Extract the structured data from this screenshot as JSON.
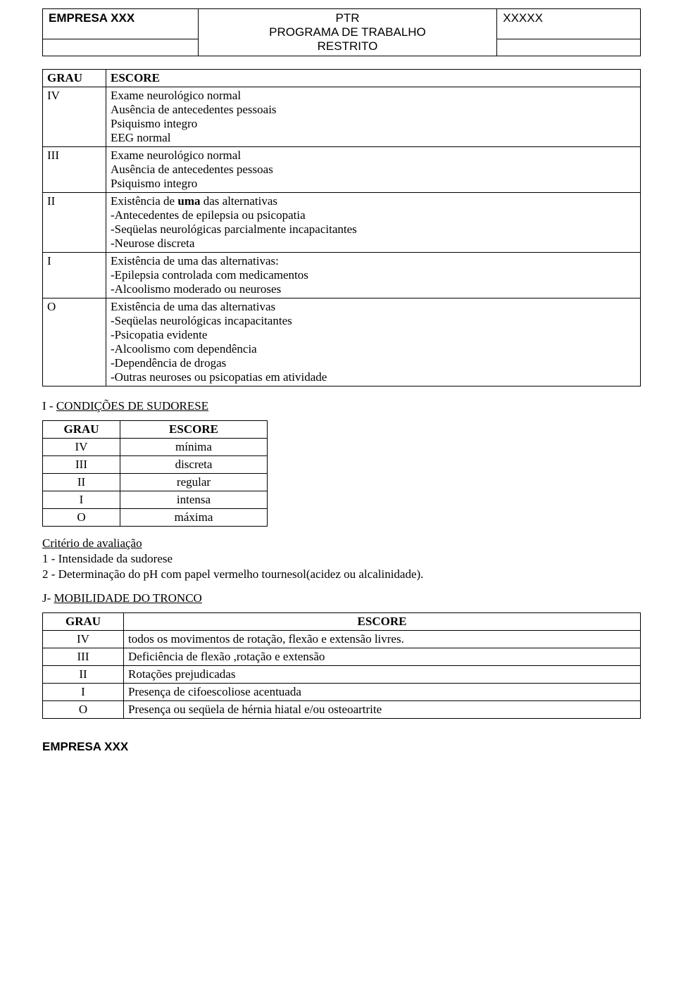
{
  "header": {
    "company": "EMPRESA XXX",
    "title_short": "PTR",
    "title_line2": "PROGRAMA DE TRABALHO",
    "title_line3": "RESTRITO",
    "right": "XXXXX"
  },
  "neuro_table": {
    "columns": {
      "grau": "GRAU",
      "escore": "ESCORE"
    },
    "rows": [
      {
        "grau": "IV",
        "lines": [
          "Exame neurológico normal",
          "Ausência de antecedentes pessoais",
          "Psiquismo integro",
          "EEG normal"
        ]
      },
      {
        "grau": "III",
        "lines": [
          "Exame neurológico normal",
          "Ausência de antecedentes pessoas",
          "Psiquismo integro"
        ]
      },
      {
        "grau": "II",
        "bold_prefix": "uma",
        "line1_pre": "Existência de ",
        "line1_post": " das alternativas",
        "lines_rest": [
          "-Antecedentes de epilepsia ou psicopatia",
          "-Seqüelas neurológicas parcialmente incapacitantes",
          "-Neurose discreta"
        ]
      },
      {
        "grau": "I",
        "lines": [
          "Existência de uma das alternativas:",
          "-Epilepsia controlada com medicamentos",
          "-Alcoolismo moderado ou neuroses"
        ]
      },
      {
        "grau": "O",
        "lines": [
          "Existência de uma das alternativas",
          "-Seqüelas neurológicas incapacitantes",
          "-Psicopatia evidente",
          "-Alcoolismo com dependência",
          "-Dependência de drogas",
          "-Outras neuroses ou psicopatias em atividade"
        ]
      }
    ]
  },
  "section_i": {
    "prefix": "I - ",
    "title": "CONDIÇÕES DE SUDORESE"
  },
  "sudorese_table": {
    "columns": {
      "grau": "GRAU",
      "escore": "ESCORE"
    },
    "rows": [
      {
        "grau": "IV",
        "escore": "mínima"
      },
      {
        "grau": "III",
        "escore": "discreta"
      },
      {
        "grau": "II",
        "escore": "regular"
      },
      {
        "grau": "I",
        "escore": "intensa"
      },
      {
        "grau": "O",
        "escore": "máxima"
      }
    ]
  },
  "criterio": {
    "title": "Critério de avaliação",
    "items": [
      "1 - Intensidade da sudorese",
      "2 - Determinação do pH com papel vermelho tournesol(acidez ou  alcalinidade)."
    ]
  },
  "section_j": {
    "prefix": "J- ",
    "title": "MOBILIDADE DO TRONCO"
  },
  "tronco_table": {
    "columns": {
      "grau": "GRAU",
      "escore": "ESCORE"
    },
    "rows": [
      {
        "grau": "IV",
        "text": "todos os movimentos de rotação, flexão e extensão livres."
      },
      {
        "grau": "III",
        "text": "Deficiência de flexão ,rotação e extensão"
      },
      {
        "grau": "II",
        "text": "Rotações prejudicadas"
      },
      {
        "grau": "I",
        "text": "Presença de cifoescoliose acentuada"
      },
      {
        "grau": "O",
        "text": "Presença ou seqüela de hérnia hiatal e/ou osteoartrite"
      }
    ]
  },
  "footer": "EMPRESA XXX"
}
